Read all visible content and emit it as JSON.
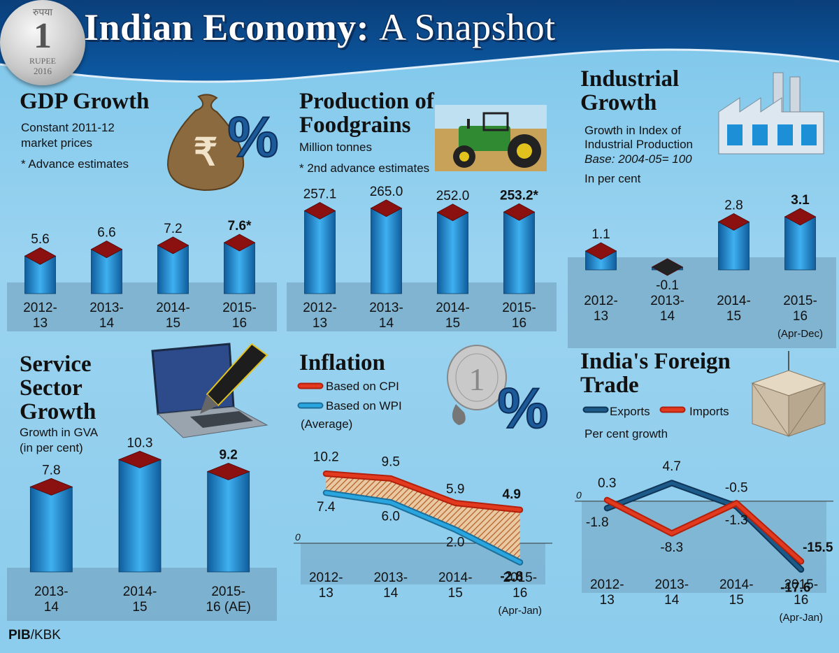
{
  "title_bold": "Indian Economy:",
  "title_light": "A Snapshot",
  "coin": {
    "top": "रुपया",
    "value": "1",
    "rupee": "RUPEE",
    "year": "2016"
  },
  "colors": {
    "bar_front": "#1d8fd6",
    "bar_top": "#8b1010",
    "cpi": "#e23a1f",
    "wpi": "#29a6e0",
    "exports": "#1c5a8a",
    "imports": "#e23a1f",
    "floor": "#6d9bb8"
  },
  "gdp": {
    "heading": "GDP Growth",
    "sub1": "Constant 2011-12",
    "sub2": "market prices",
    "note": "* Advance estimates"
  },
  "food": {
    "heading1": "Production of",
    "heading2": "Foodgrains",
    "sub1": "Million tonnes",
    "note": "* 2nd advance estimates"
  },
  "industrial": {
    "heading1": "Industrial",
    "heading2": "Growth",
    "sub1": "Growth in Index of",
    "sub2": "Industrial Production",
    "base": "Base: 2004-05= 100",
    "unit": "In per cent"
  },
  "service": {
    "heading1": "Service",
    "heading2": "Sector",
    "heading3": "Growth",
    "sub1": "Growth in GVA",
    "sub2": "(in per cent)"
  },
  "inflation": {
    "heading": "Inflation",
    "legend_cpi": "Based on CPI",
    "legend_wpi": "Based on WPI",
    "legend_avg": "(Average)"
  },
  "trade": {
    "heading1": "India's Foreign",
    "heading2": "Trade",
    "legend_exports": "Exports",
    "legend_imports": "Imports",
    "unit": "Per cent growth"
  },
  "credit": {
    "pib": "PIB",
    "rest": "/KBK"
  },
  "chart_data": [
    {
      "id": "gdp",
      "type": "bar",
      "title": "GDP Growth",
      "categories": [
        [
          "2012-",
          "13"
        ],
        [
          "2013-",
          "14"
        ],
        [
          "2014-",
          "15"
        ],
        [
          "2015-",
          "16"
        ]
      ],
      "values": [
        5.6,
        6.6,
        7.2,
        7.6
      ],
      "labels": [
        "5.6",
        "6.6",
        "7.2",
        "7.6*"
      ],
      "bold": [
        false,
        false,
        false,
        true
      ],
      "ylim": [
        0,
        9
      ]
    },
    {
      "id": "food",
      "type": "bar",
      "title": "Production of Foodgrains",
      "categories": [
        [
          "2012-",
          "13"
        ],
        [
          "2013-",
          "14"
        ],
        [
          "2014-",
          "15"
        ],
        [
          "2015-",
          "16"
        ]
      ],
      "values": [
        257.1,
        265.0,
        252.0,
        253.2
      ],
      "labels": [
        "257.1",
        "265.0",
        "252.0",
        "253.2*"
      ],
      "bold": [
        false,
        false,
        false,
        true
      ],
      "ylim": [
        0,
        300
      ]
    },
    {
      "id": "industrial",
      "type": "bar",
      "title": "Industrial Growth",
      "categories": [
        [
          "2012-",
          "13"
        ],
        [
          "2013-",
          "14"
        ],
        [
          "2014-",
          "15"
        ],
        [
          "2015-",
          "16"
        ]
      ],
      "values": [
        1.1,
        -0.1,
        2.8,
        3.1
      ],
      "labels": [
        "1.1",
        "-0.1",
        "2.8",
        "3.1"
      ],
      "bold": [
        false,
        false,
        false,
        true
      ],
      "extra_label": "(Apr-Dec)",
      "ylim": [
        0,
        3.5
      ]
    },
    {
      "id": "service",
      "type": "bar",
      "title": "Service Sector Growth",
      "categories": [
        [
          "2013-",
          "14"
        ],
        [
          "2014-",
          "15"
        ],
        [
          "2015-",
          "16 (AE)"
        ]
      ],
      "values": [
        7.8,
        10.3,
        9.2
      ],
      "labels": [
        "7.8",
        "10.3",
        "9.2"
      ],
      "bold": [
        false,
        false,
        true
      ],
      "ylim": [
        0,
        11
      ]
    },
    {
      "id": "inflation",
      "type": "line",
      "title": "Inflation",
      "categories": [
        [
          "2012-",
          "13"
        ],
        [
          "2013-",
          "14"
        ],
        [
          "2014-",
          "15"
        ],
        [
          "2015-",
          "16"
        ]
      ],
      "extra_label": "(Apr-Jan)",
      "zero_label": "0",
      "series": [
        {
          "name": "Based on CPI",
          "values": [
            10.2,
            9.5,
            5.9,
            4.9
          ],
          "labels": [
            "10.2",
            "9.5",
            "5.9",
            "4.9"
          ],
          "bold": [
            false,
            false,
            false,
            true
          ]
        },
        {
          "name": "Based on WPI",
          "values": [
            7.4,
            6.0,
            2.0,
            -2.8
          ],
          "labels": [
            "7.4",
            "6.0",
            "2.0",
            "-2.8"
          ],
          "bold": [
            false,
            false,
            false,
            true
          ]
        }
      ],
      "ylim": [
        -4,
        12
      ]
    },
    {
      "id": "trade",
      "type": "line",
      "title": "India's Foreign Trade",
      "categories": [
        [
          "2012-",
          "13"
        ],
        [
          "2013-",
          "14"
        ],
        [
          "2014-",
          "15"
        ],
        [
          "2015-",
          "16"
        ]
      ],
      "extra_label": "(Apr-Jan)",
      "zero_label": "0",
      "series": [
        {
          "name": "Exports",
          "values": [
            -1.8,
            4.7,
            -1.3,
            -17.6
          ],
          "labels": [
            "-1.8",
            "4.7",
            "-1.3",
            "-17.6"
          ],
          "bold": [
            false,
            false,
            false,
            true
          ]
        },
        {
          "name": "Imports",
          "values": [
            0.3,
            -8.3,
            -0.5,
            -15.5
          ],
          "labels": [
            "0.3",
            "-8.3",
            "-0.5",
            "-15.5"
          ],
          "bold": [
            false,
            false,
            false,
            true
          ]
        }
      ],
      "ylim": [
        -20,
        7
      ]
    }
  ]
}
